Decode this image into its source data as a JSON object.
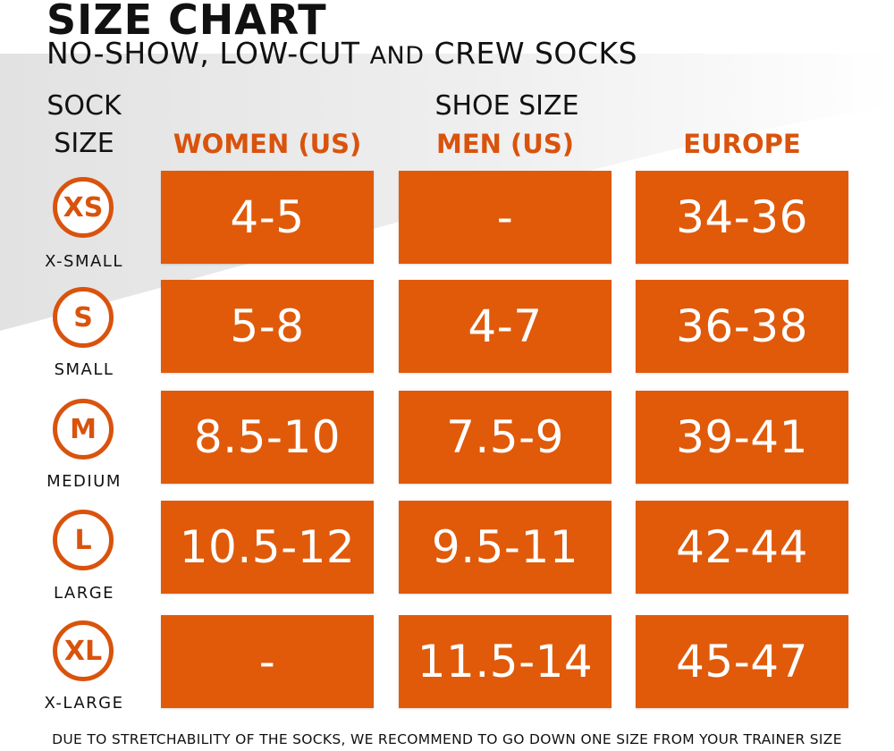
{
  "header": {
    "title": "SIZE CHART",
    "subtitle_part1": "NO-SHOW, LOW-CUT",
    "subtitle_and": "AND",
    "subtitle_part2": "CREW SOCKS"
  },
  "labels": {
    "sock_line1": "SOCK",
    "sock_line2": "SIZE",
    "shoe_size": "SHOE SIZE"
  },
  "columns": [
    "WOMEN (US)",
    "MEN (US)",
    "EUROPE"
  ],
  "rows": [
    {
      "code": "XS",
      "name": "X-SMALL",
      "values": [
        "4-5",
        "-",
        "34-36"
      ]
    },
    {
      "code": "S",
      "name": "SMALL",
      "values": [
        "5-8",
        "4-7",
        "36-38"
      ]
    },
    {
      "code": "M",
      "name": "MEDIUM",
      "values": [
        "8.5-10",
        "7.5-9",
        "39-41"
      ]
    },
    {
      "code": "L",
      "name": "LARGE",
      "values": [
        "10.5-12",
        "9.5-11",
        "42-44"
      ]
    },
    {
      "code": "XL",
      "name": "X-LARGE",
      "values": [
        "-",
        "11.5-14",
        "45-47"
      ]
    }
  ],
  "footer": "DUE TO STRETCHABILITY OF THE SOCKS, WE RECOMMEND TO GO DOWN ONE SIZE FROM YOUR TRAINER SIZE",
  "colors": {
    "accent": "#e05a0a",
    "accent_text": "#d9530d",
    "text": "#111111"
  }
}
